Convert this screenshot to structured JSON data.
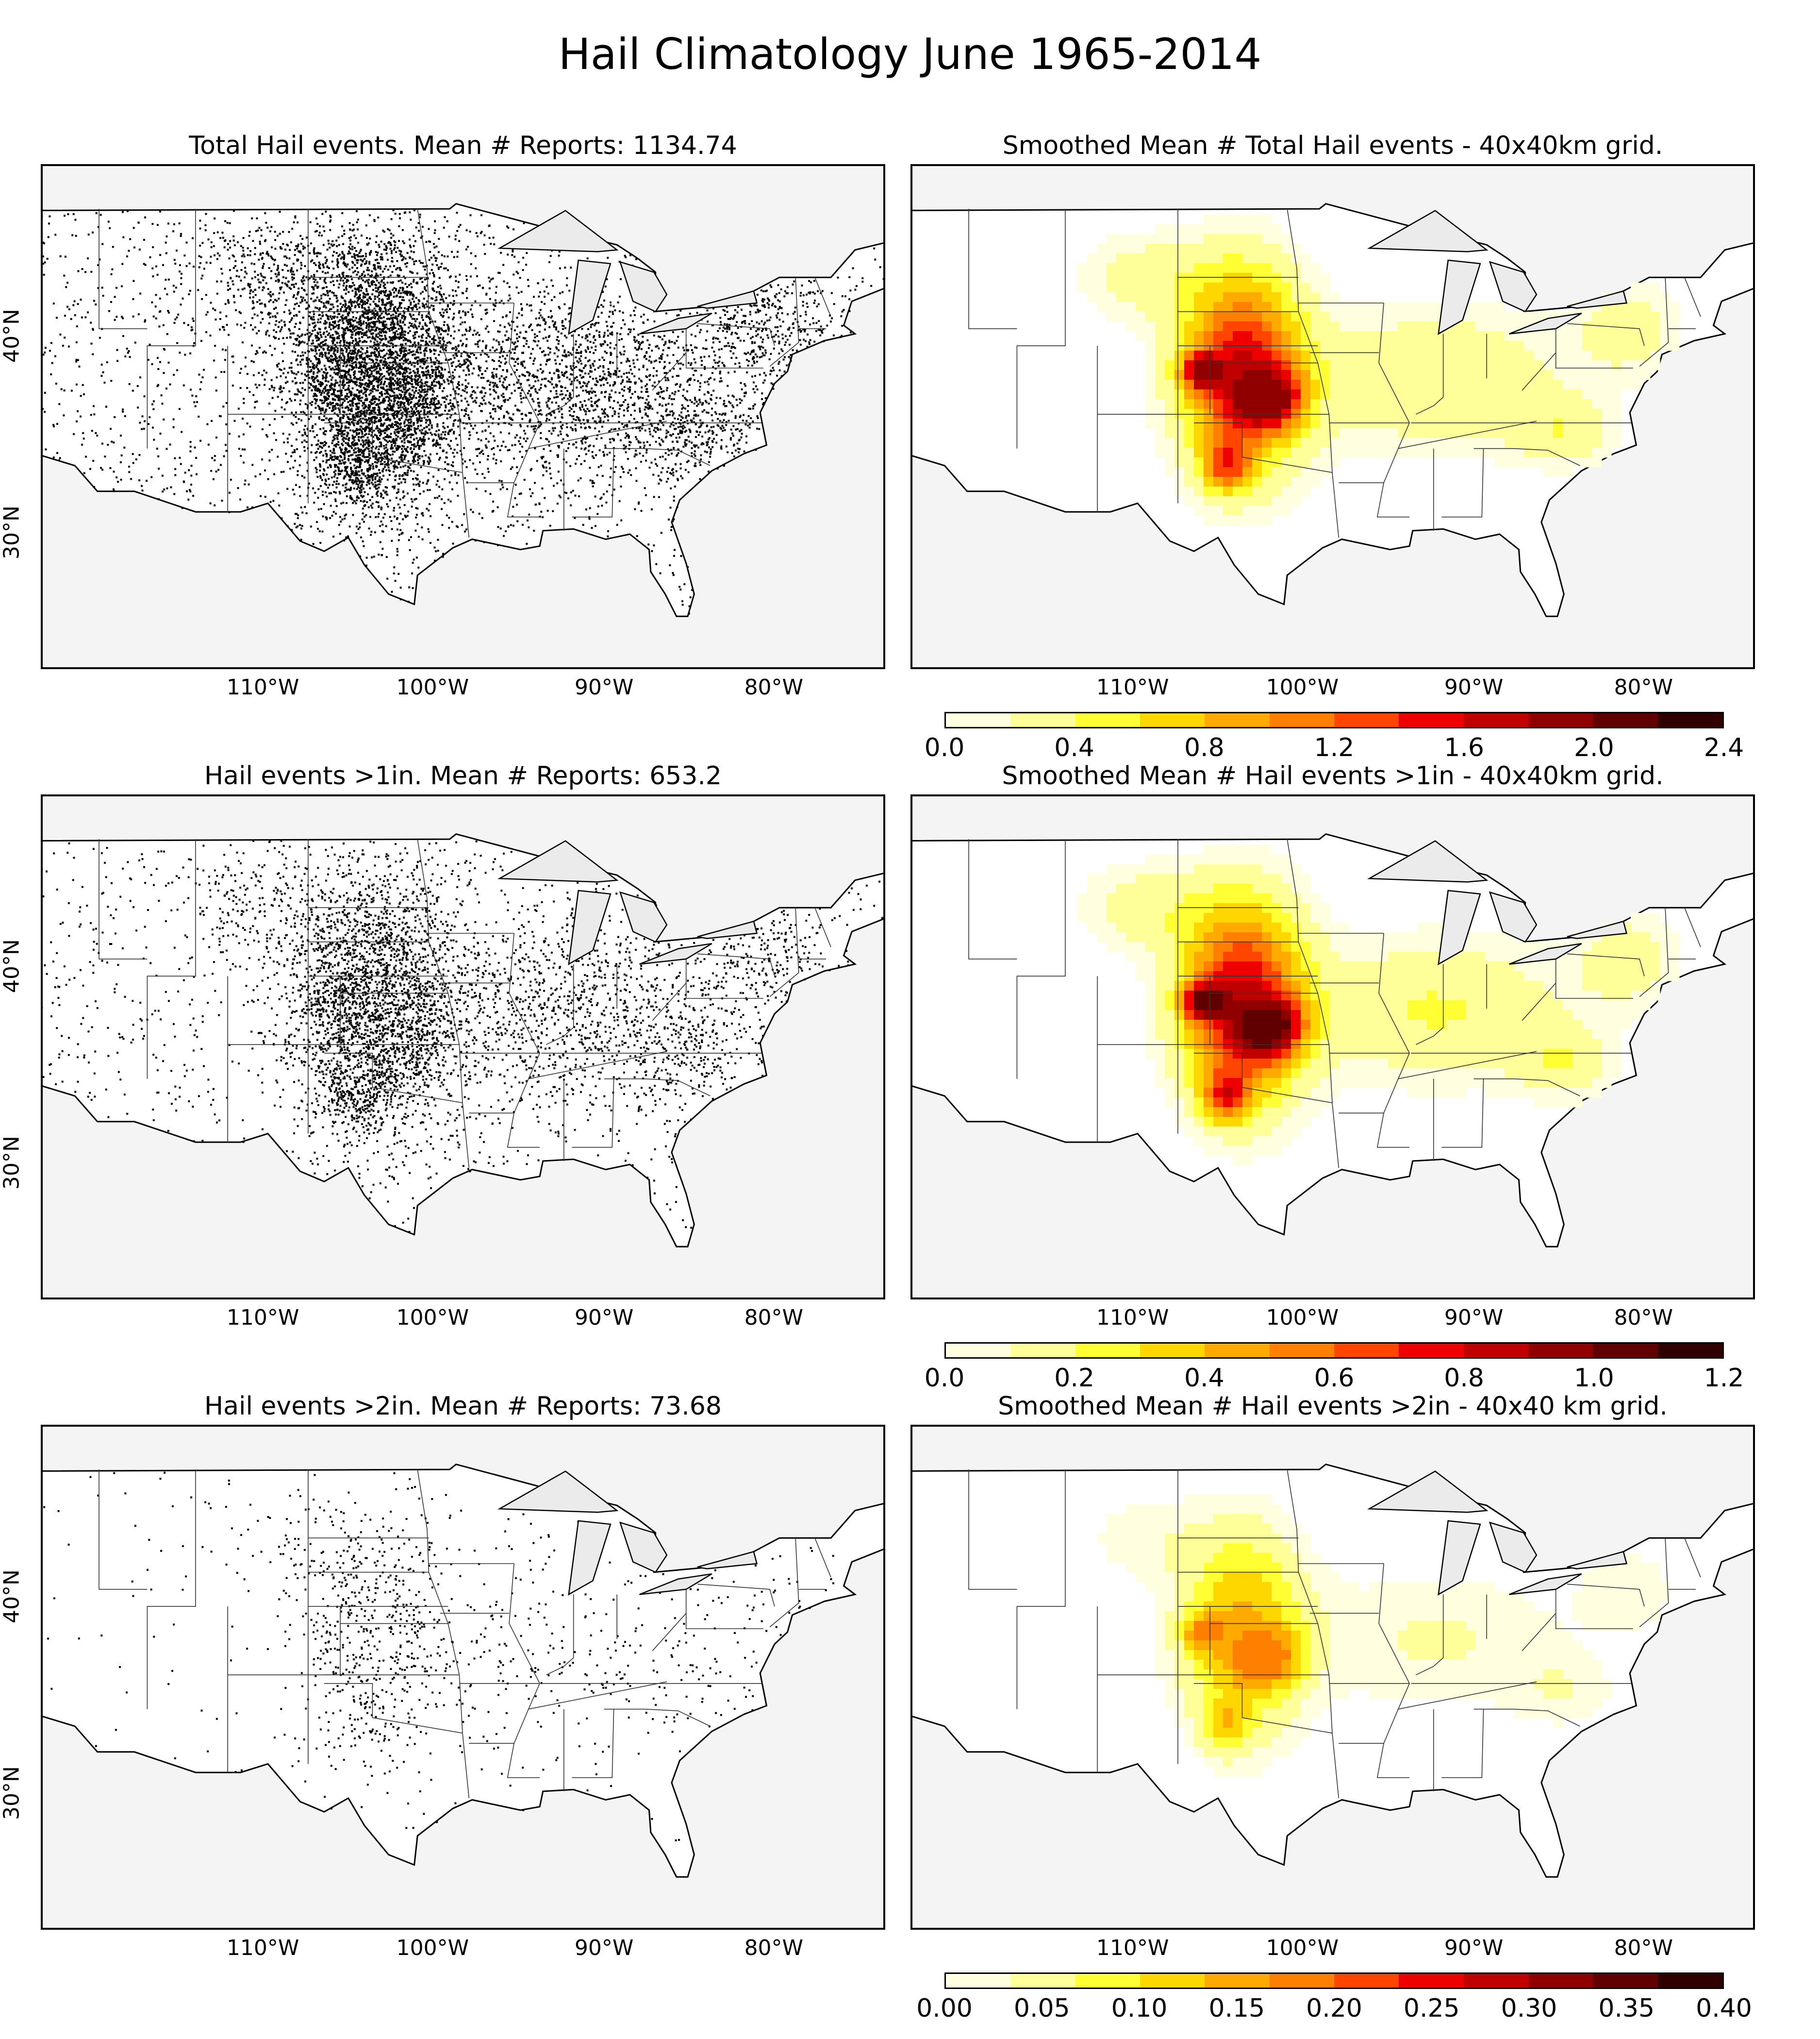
{
  "figure": {
    "title": "Hail Climatology June 1965-2014"
  },
  "panels": [
    {
      "id": "p1",
      "title": "Total Hail events. Mean # Reports: 1134.74",
      "kind": "points",
      "density": 1.0
    },
    {
      "id": "p2",
      "title": "Smoothed Mean # Total Hail events - 40x40km grid.",
      "kind": "smoothed"
    },
    {
      "id": "p3",
      "title": "Hail events >1in. Mean # Reports: 653.2",
      "kind": "points",
      "density": 0.6
    },
    {
      "id": "p4",
      "title": "Smoothed Mean # Hail events >1in - 40x40km grid.",
      "kind": "smoothed"
    },
    {
      "id": "p5",
      "title": "Hail events >2in. Mean # Reports: 73.68",
      "kind": "points",
      "density": 0.12
    },
    {
      "id": "p6",
      "title": "Smoothed Mean # Hail events >2in - 40x40 km grid.",
      "kind": "smoothed"
    }
  ],
  "axes": {
    "x_ticks": [
      "110°W",
      "100°W",
      "90°W",
      "80°W"
    ],
    "y_ticks": [
      "40°N",
      "30°N"
    ]
  },
  "colorbars": [
    {
      "ticks": [
        "0.0",
        "0.4",
        "0.8",
        "1.2",
        "1.6",
        "2.0",
        "2.4"
      ],
      "vmin": 0.0,
      "vmax": 2.4
    },
    {
      "ticks": [
        "0.0",
        "0.2",
        "0.4",
        "0.6",
        "0.8",
        "1.0",
        "1.2"
      ],
      "vmin": 0.0,
      "vmax": 1.2
    },
    {
      "ticks": [
        "0.00",
        "0.05",
        "0.10",
        "0.15",
        "0.20",
        "0.25",
        "0.30",
        "0.35",
        "0.40"
      ],
      "vmin": 0.0,
      "vmax": 0.4
    }
  ],
  "colormap": [
    "#ffffe0",
    "#ffff99",
    "#ffff33",
    "#ffd700",
    "#ffaa00",
    "#ff7f00",
    "#ff4500",
    "#ee0000",
    "#c00000",
    "#900000",
    "#600000",
    "#300000"
  ],
  "colors": {
    "land": "#ffffff",
    "ocean": "#f4f4f4",
    "lakes": "#ebebeb",
    "boundary": "#000000"
  }
}
